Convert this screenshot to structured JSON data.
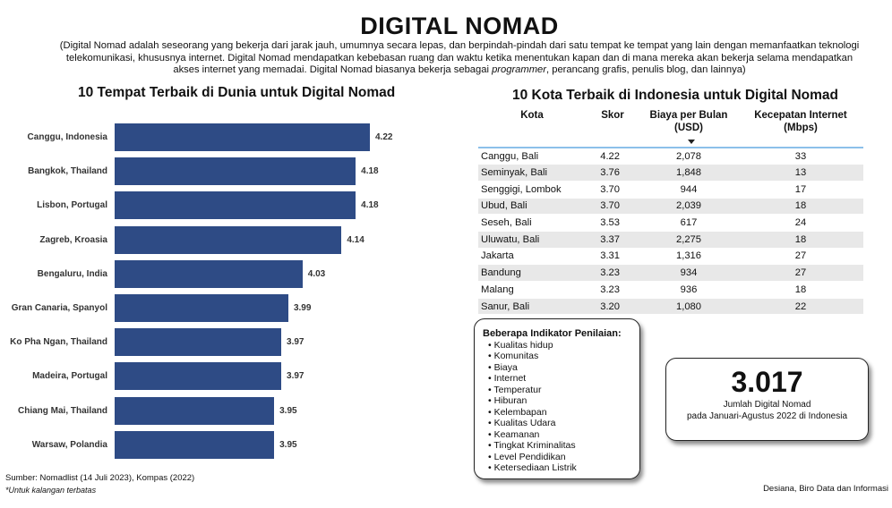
{
  "title": "DIGITAL NOMAD",
  "description_pre": "(Digital Nomad adalah seseorang yang bekerja dari jarak jauh, umumnya secara lepas, dan berpindah-pindah dari satu tempat ke tempat yang lain dengan memanfaatkan teknologi telekomunikasi, khususnya internet. Digital Nomad mendapatkan kebebasan ruang dan waktu ketika menentukan kapan dan di mana mereka akan bekerja selama mendapatkan akses internet yang memadai. Digital Nomad biasanya bekerja sebagai ",
  "description_em": "programmer",
  "description_post": ", perancang grafis, penulis blog, dan lainnya)",
  "chart_data": {
    "type": "bar",
    "orientation": "horizontal",
    "title": "10 Tempat Terbaik di Dunia untuk Digital Nomad",
    "categories": [
      "Canggu, Indonesia",
      "Bangkok, Thailand",
      "Lisbon, Portugal",
      "Zagreb, Kroasia",
      "Bengaluru, India",
      "Gran Canaria, Spanyol",
      "Ko Pha Ngan, Thailand",
      "Madeira, Portugal",
      "Chiang Mai, Thailand",
      "Warsaw, Polandia"
    ],
    "values": [
      4.22,
      4.18,
      4.18,
      4.14,
      4.03,
      3.99,
      3.97,
      3.97,
      3.95,
      3.95
    ],
    "labels": [
      "4.22",
      "4.18",
      "4.18",
      "4.14",
      "4.03",
      "3.99",
      "3.97",
      "3.97",
      "3.95",
      "3.95"
    ],
    "xlim": [
      3.5,
      4.3
    ],
    "color": "#2e4b85"
  },
  "table": {
    "title": "10 Kota Terbaik di Indonesia untuk Digital Nomad",
    "headers": [
      "Kota",
      "Skor",
      "Biaya per Bulan (USD)",
      "Kecepatan Internet (Mbps)"
    ],
    "rows": [
      [
        "Canggu, Bali",
        "4.22",
        "2,078",
        "33"
      ],
      [
        "Seminyak, Bali",
        "3.76",
        "1,848",
        "13"
      ],
      [
        "Senggigi, Lombok",
        "3.70",
        "944",
        "17"
      ],
      [
        "Ubud, Bali",
        "3.70",
        "2,039",
        "18"
      ],
      [
        "Seseh, Bali",
        "3.53",
        "617",
        "24"
      ],
      [
        "Uluwatu, Bali",
        "3.37",
        "2,275",
        "18"
      ],
      [
        "Jakarta",
        "3.31",
        "1,316",
        "27"
      ],
      [
        "Bandung",
        "3.23",
        "934",
        "27"
      ],
      [
        "Malang",
        "3.23",
        "936",
        "18"
      ],
      [
        "Sanur, Bali",
        "3.20",
        "1,080",
        "22"
      ]
    ]
  },
  "indicators": {
    "title": "Beberapa Indikator Penilaian:",
    "items": [
      "Kualitas hidup",
      "Komunitas",
      "Biaya",
      "Internet",
      "Temperatur",
      "Hiburan",
      "Kelembapan",
      "Kualitas Udara",
      "Keamanan",
      "Tingkat Kriminalitas",
      "Level Pendidikan",
      "Ketersediaan Listrik"
    ]
  },
  "kpi": {
    "value": "3.017",
    "label1": "Jumlah Digital Nomad",
    "label2": "pada Januari-Agustus 2022 di Indonesia"
  },
  "source": "Sumber: Nomadlist (14 Juli 2023), Kompas (2022)",
  "note": "*Untuk kalangan terbatas",
  "author": "Desiana, Biro Data dan Informasi"
}
